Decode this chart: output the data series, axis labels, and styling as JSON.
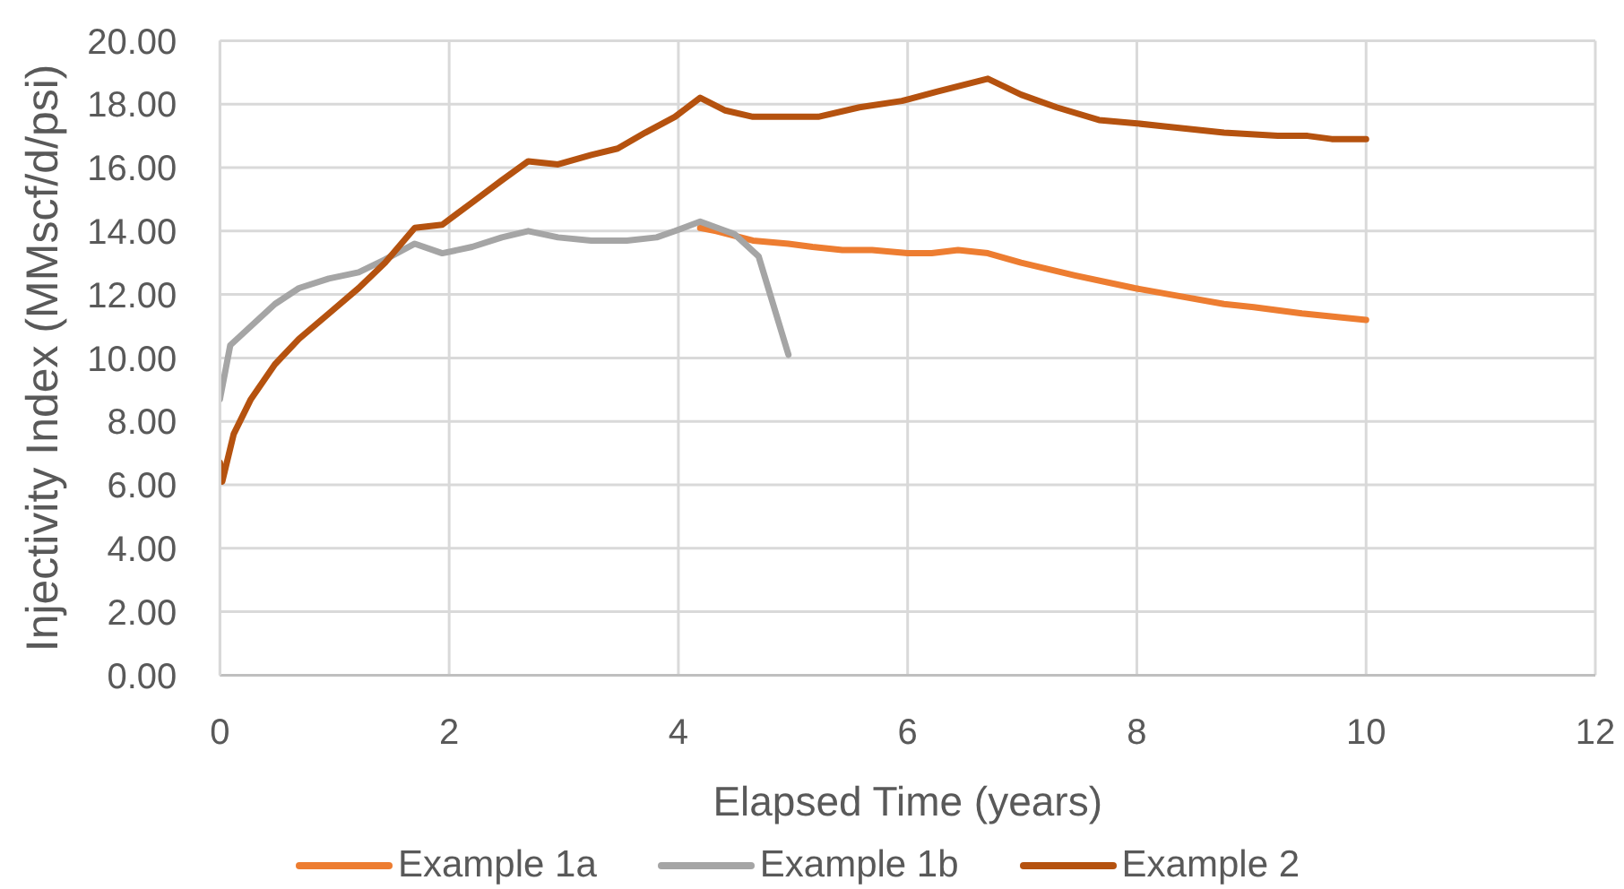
{
  "chart_data": {
    "type": "line",
    "xlabel": "Elapsed Time (years)",
    "ylabel": "Injectivity Index (MMscf/d/psi)",
    "xlim": [
      0,
      12
    ],
    "xticks": [
      0,
      2,
      4,
      6,
      8,
      10,
      12
    ],
    "ylim": [
      0,
      20
    ],
    "yticks": [
      {
        "value": 0,
        "label": "0.00"
      },
      {
        "value": 2,
        "label": "2.00"
      },
      {
        "value": 4,
        "label": "4.00"
      },
      {
        "value": 6,
        "label": "6.00"
      },
      {
        "value": 8,
        "label": "8.00"
      },
      {
        "value": 10,
        "label": "10.00"
      },
      {
        "value": 12,
        "label": "12.00"
      },
      {
        "value": 14,
        "label": "14.00"
      },
      {
        "value": 16,
        "label": "16.00"
      },
      {
        "value": 18,
        "label": "18.00"
      },
      {
        "value": 20,
        "label": "20.00"
      }
    ],
    "grid": true,
    "legend": "bottom",
    "marker": "none",
    "line_style": "solid",
    "series": [
      {
        "name": "Example 1a",
        "color": "#ed7d31",
        "x": [
          4.19,
          4.33,
          4.65,
          4.96,
          5.17,
          5.43,
          5.69,
          6.0,
          6.21,
          6.44,
          6.7,
          6.99,
          7.46,
          7.98,
          8.29,
          8.76,
          9.02,
          9.44,
          10.0
        ],
        "values": [
          14.1,
          14.0,
          13.7,
          13.6,
          13.5,
          13.4,
          13.4,
          13.3,
          13.3,
          13.4,
          13.3,
          13.0,
          12.6,
          12.2,
          12.0,
          11.7,
          11.6,
          11.4,
          11.2
        ]
      },
      {
        "name": "Example 1b",
        "color": "#a5a5a5",
        "x": [
          0,
          0.09,
          0.27,
          0.48,
          0.69,
          0.95,
          1.21,
          1.44,
          1.7,
          1.94,
          2.2,
          2.46,
          2.69,
          2.95,
          3.24,
          3.55,
          3.81,
          3.97,
          4.19,
          4.49,
          4.7,
          4.96
        ],
        "values": [
          8.7,
          10.4,
          11.0,
          11.7,
          12.2,
          12.5,
          12.7,
          13.1,
          13.6,
          13.3,
          13.5,
          13.8,
          14.0,
          13.8,
          13.7,
          13.7,
          13.8,
          14.0,
          14.3,
          13.9,
          13.2,
          10.1
        ]
      },
      {
        "name": "Example 2",
        "color": "#b5520f",
        "x": [
          0,
          0.02,
          0.12,
          0.27,
          0.48,
          0.69,
          0.95,
          1.21,
          1.44,
          1.7,
          1.94,
          2.2,
          2.46,
          2.69,
          2.95,
          3.24,
          3.47,
          3.71,
          3.97,
          4.19,
          4.41,
          4.65,
          5.22,
          5.58,
          5.95,
          6.26,
          6.7,
          6.99,
          7.3,
          7.67,
          7.98,
          8.24,
          8.76,
          9.23,
          9.49,
          9.7,
          10.0
        ],
        "values": [
          6.7,
          6.1,
          7.6,
          8.7,
          9.8,
          10.6,
          11.4,
          12.2,
          13.0,
          14.1,
          14.2,
          14.9,
          15.6,
          16.2,
          16.1,
          16.4,
          16.6,
          17.1,
          17.6,
          18.2,
          17.8,
          17.6,
          17.6,
          17.9,
          18.1,
          18.4,
          18.8,
          18.3,
          17.9,
          17.5,
          17.4,
          17.3,
          17.1,
          17.0,
          17.0,
          16.9,
          16.9
        ]
      }
    ]
  }
}
